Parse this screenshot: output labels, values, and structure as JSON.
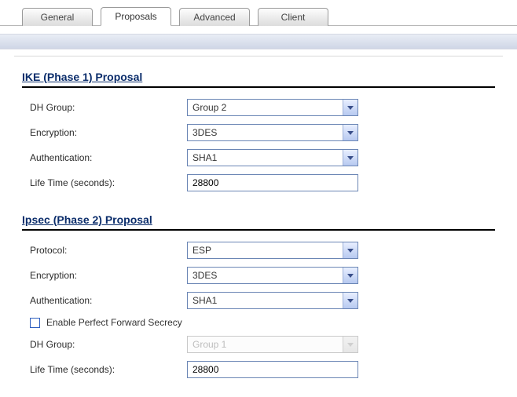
{
  "tabs": {
    "general": "General",
    "proposals": "Proposals",
    "advanced": "Advanced",
    "client": "Client",
    "active": "proposals"
  },
  "phase1": {
    "title": "IKE (Phase 1) Proposal",
    "dh_group_label": "DH Group:",
    "dh_group_value": "Group 2",
    "encryption_label": "Encryption:",
    "encryption_value": "3DES",
    "auth_label": "Authentication:",
    "auth_value": "SHA1",
    "lifetime_label": "Life Time (seconds):",
    "lifetime_value": "28800"
  },
  "phase2": {
    "title": "Ipsec (Phase 2) Proposal",
    "protocol_label": "Protocol:",
    "protocol_value": "ESP",
    "encryption_label": "Encryption:",
    "encryption_value": "3DES",
    "auth_label": "Authentication:",
    "auth_value": "SHA1",
    "pfs_label": "Enable Perfect Forward Secrecy",
    "pfs_checked": false,
    "dh_group_label": "DH Group:",
    "dh_group_value": "Group 1",
    "lifetime_label": "Life Time (seconds):",
    "lifetime_value": "28800"
  },
  "colors": {
    "heading": "#0b2d6b",
    "rule": "#000000",
    "control_border": "#6b86b5",
    "tab_grad_top": "#fdfdfd",
    "tab_grad_bot": "#dcdcdc",
    "band_top": "#e9edf5",
    "band_bot": "#cfd6e6"
  }
}
